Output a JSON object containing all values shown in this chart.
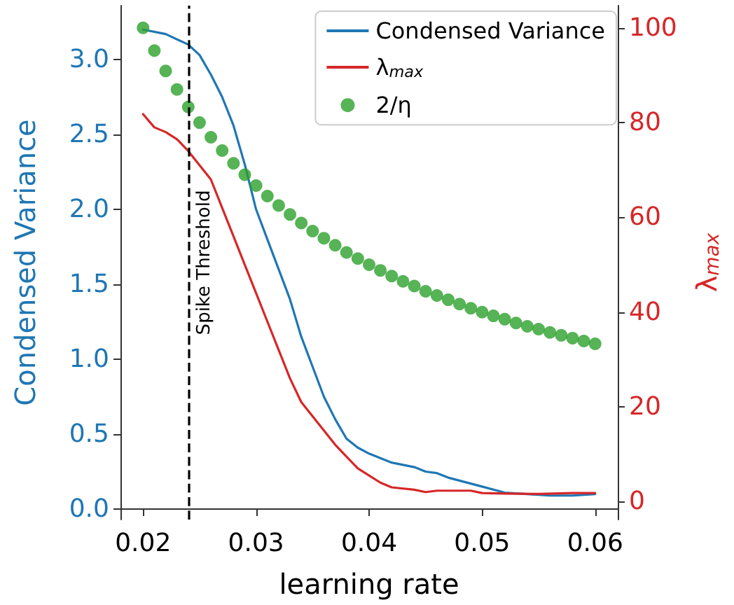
{
  "chart_data": {
    "type": "line",
    "xlabel": "learning rate",
    "ylabel": "Condensed Variance",
    "y2label": "λ$_{max}$",
    "xlim": [
      0.018,
      0.062
    ],
    "xticks": [
      0.02,
      0.03,
      0.04,
      0.05,
      0.06
    ],
    "ylim": [
      -0.07,
      3.36
    ],
    "yticks": [
      {
        "value": 0,
        "label": "0.0"
      },
      0.5,
      {
        "value": 1,
        "label": "1.0"
      },
      1.5,
      {
        "value": 2,
        "label": "2.0"
      },
      2.5,
      {
        "value": 3,
        "label": "3.0"
      }
    ],
    "y2lim": [
      -3.8,
      104.7
    ],
    "y2ticks": [
      0,
      20,
      40,
      60,
      80,
      100
    ],
    "grid": false,
    "legend": "top right",
    "ref_lines": [
      {
        "axis": "x",
        "value": 0.024,
        "label": "Spike Threshold",
        "color": "#000000",
        "line_style": "dashed"
      }
    ],
    "series": [
      {
        "name": "Condensed Variance",
        "color": "#1f77b4",
        "marker": "none",
        "x": [
          0.02,
          0.022,
          0.024,
          0.025,
          0.026,
          0.027,
          0.028,
          0.029,
          0.03,
          0.031,
          0.032,
          0.033,
          0.034,
          0.035,
          0.036,
          0.037,
          0.038,
          0.039,
          0.04,
          0.042,
          0.044,
          0.045,
          0.046,
          0.047,
          0.048,
          0.05,
          0.052,
          0.054,
          0.056,
          0.058,
          0.06
        ],
        "values": [
          3.2,
          3.17,
          3.1,
          3.03,
          2.9,
          2.75,
          2.56,
          2.3,
          2.0,
          1.8,
          1.6,
          1.4,
          1.15,
          0.95,
          0.75,
          0.6,
          0.47,
          0.41,
          0.37,
          0.31,
          0.28,
          0.25,
          0.24,
          0.21,
          0.19,
          0.15,
          0.11,
          0.1,
          0.09,
          0.09,
          0.1
        ]
      },
      {
        "name": "λ$_{max}$",
        "axis": "y2",
        "color": "#d62728",
        "marker": "none",
        "x": [
          0.02,
          0.021,
          0.022,
          0.023,
          0.024,
          0.025,
          0.026,
          0.027,
          0.028,
          0.029,
          0.03,
          0.031,
          0.032,
          0.033,
          0.034,
          0.035,
          0.036,
          0.037,
          0.038,
          0.039,
          0.04,
          0.041,
          0.042,
          0.044,
          0.045,
          0.046,
          0.047,
          0.049,
          0.05,
          0.052,
          0.055,
          0.058,
          0.06
        ],
        "values": [
          81.8,
          79,
          78,
          76.5,
          74,
          71,
          68,
          62,
          56,
          50,
          44,
          38,
          32,
          26,
          21,
          18,
          15,
          12,
          9.5,
          7,
          5.5,
          4,
          3,
          2.5,
          2,
          2.3,
          2.3,
          2.3,
          1.8,
          1.7,
          1.6,
          1.8,
          1.8
        ]
      },
      {
        "name": "2/η",
        "type": "scatter",
        "axis": "y2",
        "color": "#2ca02c",
        "marker": "circle",
        "x": [
          0.02,
          0.021,
          0.022,
          0.023,
          0.024,
          0.025,
          0.026,
          0.027,
          0.028,
          0.029,
          0.03,
          0.031,
          0.032,
          0.033,
          0.034,
          0.035,
          0.036,
          0.037,
          0.038,
          0.039,
          0.04,
          0.041,
          0.042,
          0.043,
          0.044,
          0.045,
          0.046,
          0.047,
          0.048,
          0.049,
          0.05,
          0.051,
          0.052,
          0.053,
          0.054,
          0.055,
          0.056,
          0.057,
          0.058,
          0.059,
          0.06
        ],
        "values": [
          100,
          95.2,
          90.9,
          87,
          83.3,
          80,
          76.9,
          74.1,
          71.4,
          69,
          66.7,
          64.5,
          62.5,
          60.6,
          58.8,
          57.1,
          55.6,
          54.1,
          52.6,
          51.3,
          50,
          48.8,
          47.6,
          46.5,
          45.5,
          44.4,
          43.5,
          42.6,
          41.7,
          40.8,
          40,
          39.2,
          38.5,
          37.7,
          37,
          36.4,
          35.7,
          35.1,
          34.5,
          33.9,
          33.3
        ]
      }
    ]
  }
}
